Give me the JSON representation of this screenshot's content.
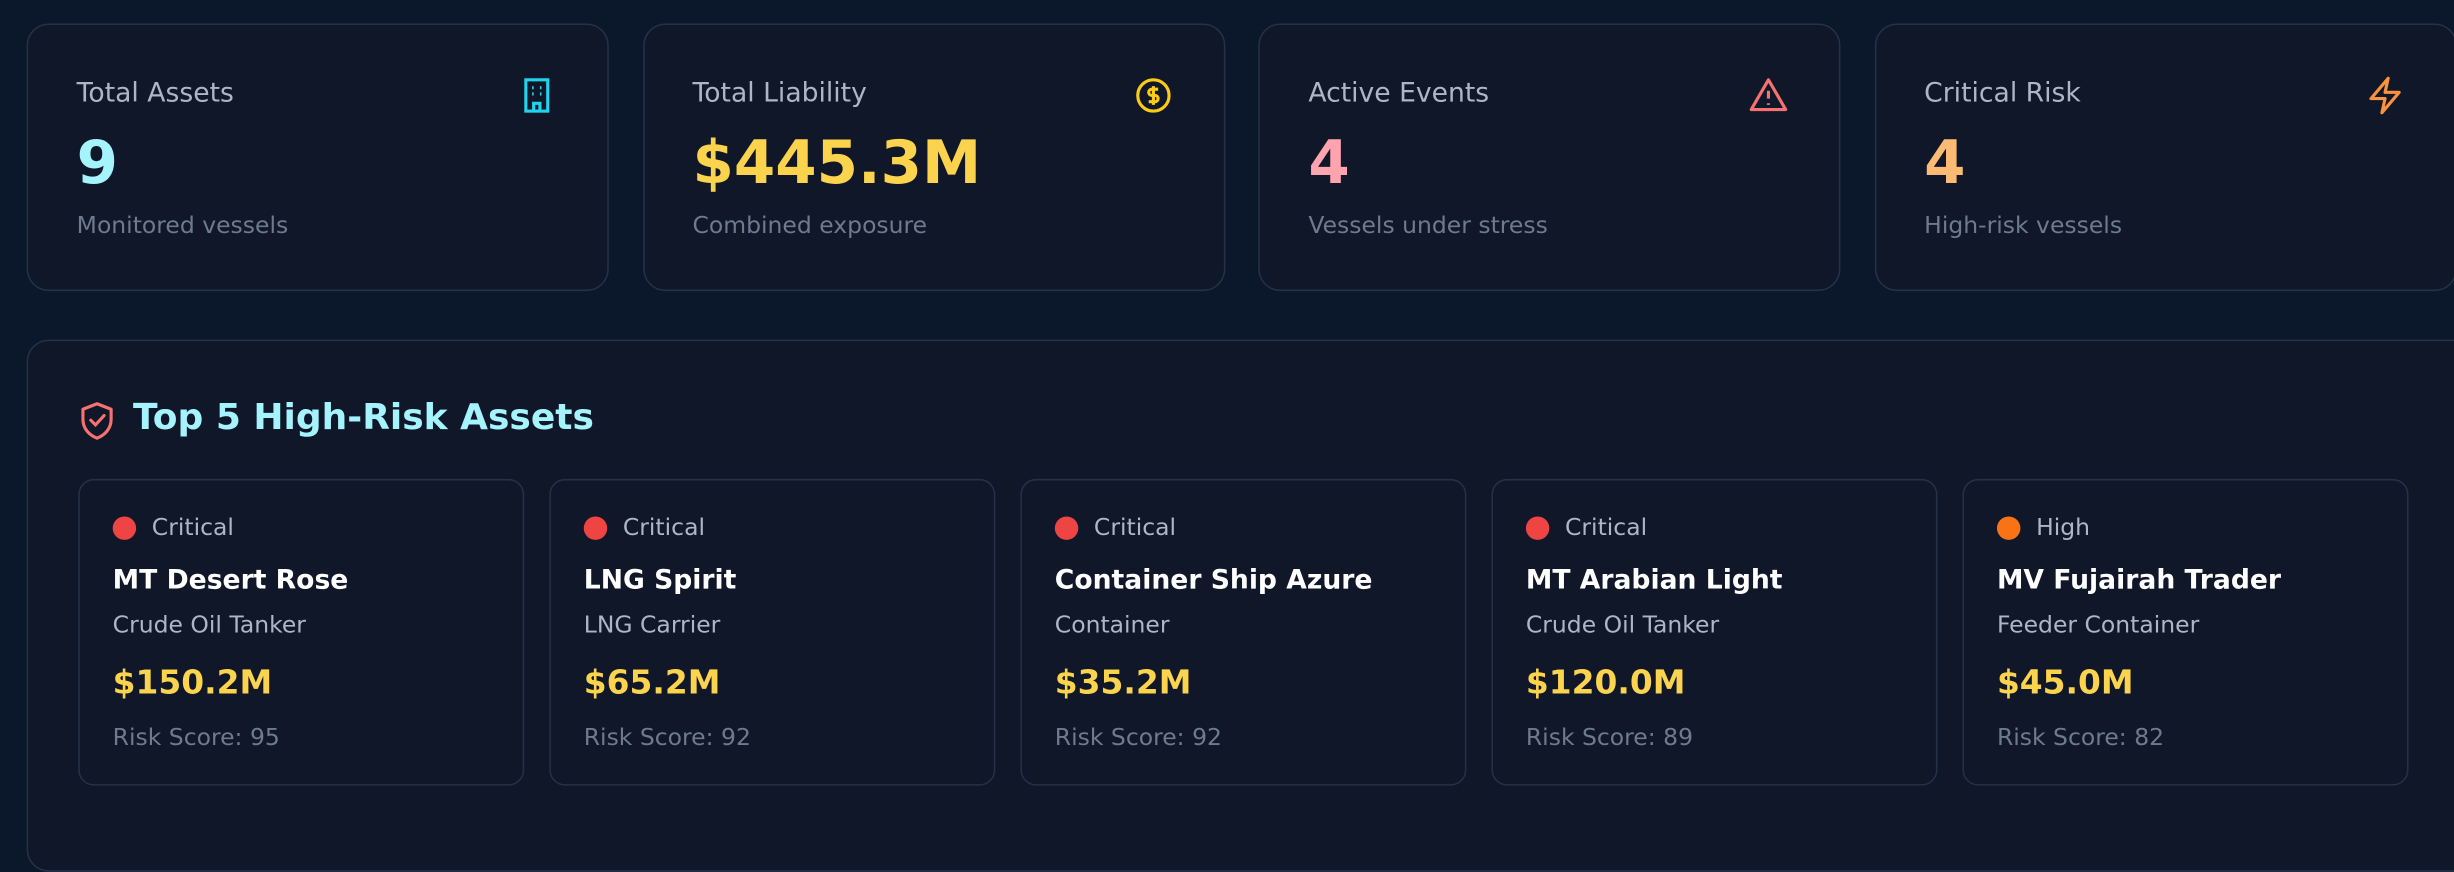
{
  "stats": [
    {
      "label": "Total Assets",
      "value": "9",
      "sub": "Monitored vessels"
    },
    {
      "label": "Total Liability",
      "value": "$445.3M",
      "sub": "Combined exposure"
    },
    {
      "label": "Active Events",
      "value": "4",
      "sub": "Vessels under stress"
    },
    {
      "label": "Critical Risk",
      "value": "4",
      "sub": "High-risk vessels"
    }
  ],
  "panel": {
    "title": "Top 5 High-Risk Assets",
    "risk_label": "Risk Score:",
    "assets": [
      {
        "level": "Critical",
        "name": "MT Desert Rose",
        "kind": "Crude Oil Tanker",
        "liability": "$150.2M",
        "score": 95
      },
      {
        "level": "Critical",
        "name": "LNG Spirit",
        "kind": "LNG Carrier",
        "liability": "$65.2M",
        "score": 92
      },
      {
        "level": "Critical",
        "name": "Container Ship Azure",
        "kind": "Container",
        "liability": "$35.2M",
        "score": 92
      },
      {
        "level": "Critical",
        "name": "MT Arabian Light",
        "kind": "Crude Oil Tanker",
        "liability": "$120.0M",
        "score": 89
      },
      {
        "level": "High",
        "name": "MV Fujairah Trader",
        "kind": "Feeder Container",
        "liability": "$45.0M",
        "score": 82
      }
    ]
  }
}
